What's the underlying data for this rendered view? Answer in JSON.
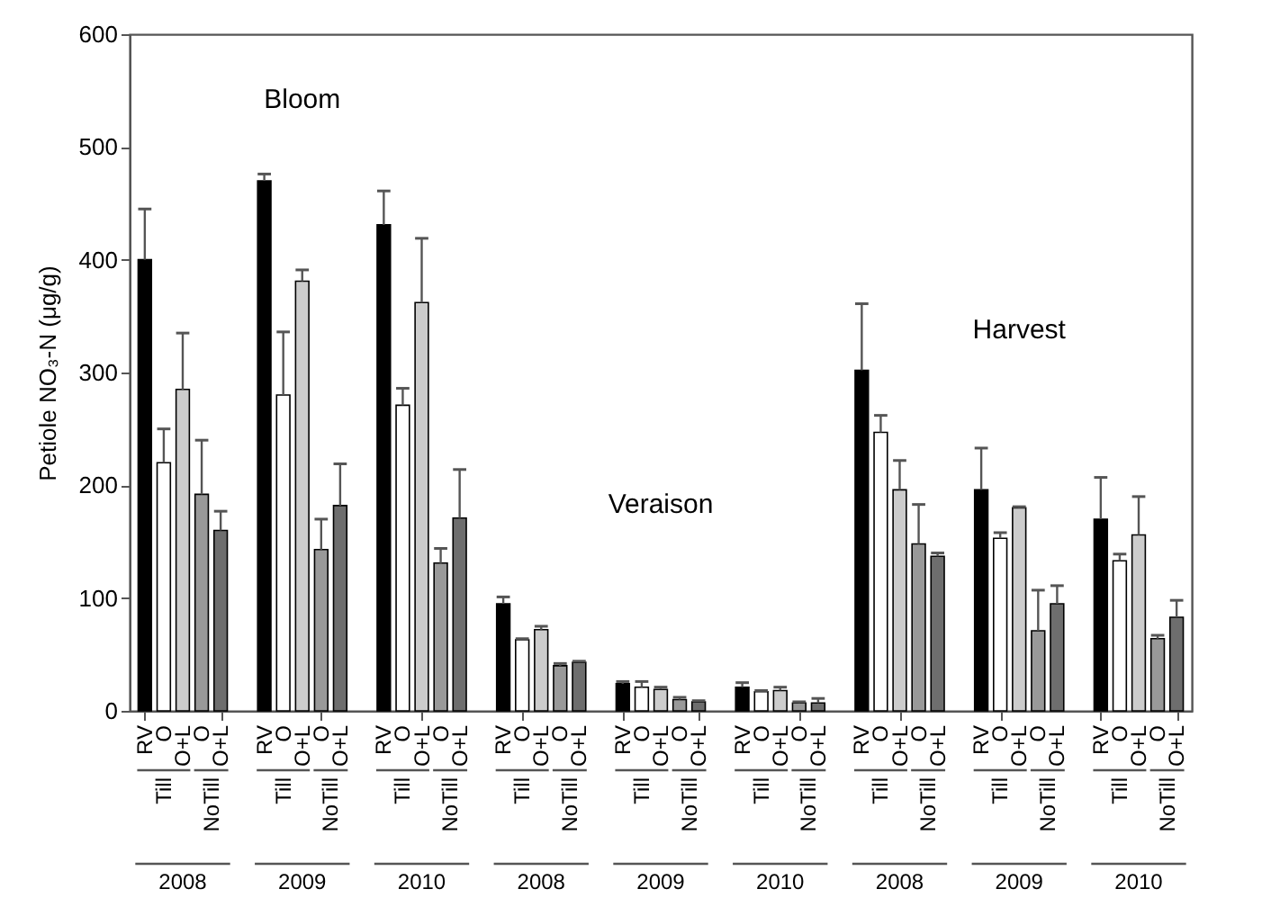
{
  "chart_data": {
    "type": "bar",
    "ylabel": "Petiole NO₃-N (μg/g)",
    "categories": [
      "RV",
      "O",
      "O+L",
      "O",
      "O+L",
      "RV",
      "O",
      "O+L",
      "O",
      "O+L",
      "RV",
      "O",
      "O+L",
      "O",
      "O+L",
      "RV",
      "O",
      "O+L",
      "O",
      "O+L",
      "RV",
      "O",
      "O+L",
      "O",
      "O+L",
      "RV",
      "O",
      "O+L",
      "O",
      "O+L",
      "RV",
      "O",
      "O+L",
      "O",
      "O+L",
      "RV",
      "O",
      "O+L",
      "O",
      "O+L",
      "RV",
      "O",
      "O+L",
      "O",
      "O+L"
    ],
    "values": [
      400,
      220,
      285,
      192,
      160,
      470,
      280,
      381,
      143,
      182,
      431,
      271,
      362,
      131,
      171,
      95,
      63,
      72,
      40,
      43,
      24,
      21,
      19,
      10,
      8,
      21,
      17,
      18,
      7,
      7,
      302,
      247,
      196,
      148,
      137,
      196,
      153,
      180,
      71,
      95,
      170,
      133,
      156,
      64,
      83
    ],
    "errors": [
      [
        400,
        445
      ],
      [
        220,
        250
      ],
      [
        285,
        335
      ],
      [
        192,
        240
      ],
      [
        160,
        177
      ],
      [
        470,
        476
      ],
      [
        280,
        336
      ],
      [
        381,
        391
      ],
      [
        143,
        170
      ],
      [
        182,
        219
      ],
      [
        431,
        461
      ],
      [
        271,
        286
      ],
      [
        362,
        419
      ],
      [
        131,
        144
      ],
      [
        171,
        214
      ],
      [
        95,
        101
      ],
      [
        63,
        64
      ],
      [
        72,
        75
      ],
      [
        40,
        42
      ],
      [
        43,
        44
      ],
      [
        24,
        26
      ],
      [
        21,
        26
      ],
      [
        19,
        21
      ],
      [
        10,
        12
      ],
      [
        8,
        9
      ],
      [
        21,
        25
      ],
      [
        17,
        18
      ],
      [
        18,
        21
      ],
      [
        7,
        8
      ],
      [
        7,
        11
      ],
      [
        302,
        361
      ],
      [
        247,
        262
      ],
      [
        196,
        222
      ],
      [
        148,
        183
      ],
      [
        137,
        140
      ],
      [
        196,
        233
      ],
      [
        153,
        158
      ],
      [
        180,
        181
      ],
      [
        71,
        107
      ],
      [
        95,
        111
      ],
      [
        170,
        207
      ],
      [
        133,
        139
      ],
      [
        156,
        190
      ],
      [
        64,
        67
      ],
      [
        83,
        98
      ]
    ],
    "colors": [
      "#000000",
      "#ffffff",
      "#cccccc",
      "#999999",
      "#6e6e6e",
      "#000000",
      "#ffffff",
      "#cccccc",
      "#999999",
      "#6e6e6e",
      "#000000",
      "#ffffff",
      "#cccccc",
      "#999999",
      "#6e6e6e",
      "#000000",
      "#ffffff",
      "#cccccc",
      "#999999",
      "#6e6e6e",
      "#000000",
      "#ffffff",
      "#cccccc",
      "#999999",
      "#6e6e6e",
      "#000000",
      "#ffffff",
      "#cccccc",
      "#999999",
      "#6e6e6e",
      "#000000",
      "#ffffff",
      "#cccccc",
      "#999999",
      "#6e6e6e",
      "#000000",
      "#ffffff",
      "#cccccc",
      "#999999",
      "#6e6e6e",
      "#000000",
      "#ffffff",
      "#cccccc",
      "#999999",
      "#6e6e6e"
    ],
    "ylim": [
      0,
      600
    ],
    "yticks": [
      0,
      100,
      200,
      300,
      400,
      500,
      600
    ],
    "grid": false,
    "annotations": [
      "Bloom",
      "Veraison",
      "Harvest",
      "Till",
      "NoTill",
      "Till",
      "NoTill",
      "Till",
      "NoTill",
      "Till",
      "NoTill",
      "Till",
      "NoTill",
      "Till",
      "NoTill",
      "Till",
      "NoTill",
      "Till",
      "NoTill",
      "Till",
      "NoTill",
      "2008",
      "2009",
      "2010",
      "2008",
      "2009",
      "2010",
      "2008",
      "2009",
      "2010"
    ]
  }
}
